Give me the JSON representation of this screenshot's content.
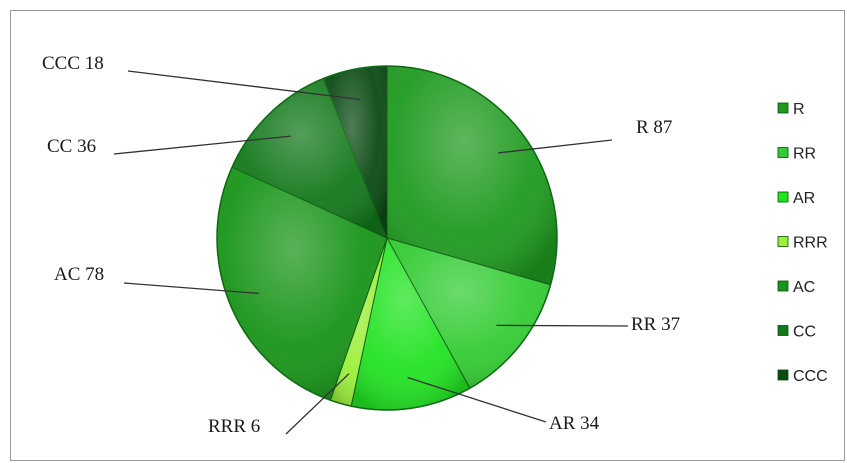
{
  "chart_data": {
    "type": "pie",
    "title": "",
    "categories": [
      "R",
      "RR",
      "AR",
      "RRR",
      "AC",
      "CC",
      "CCC"
    ],
    "values": [
      87,
      37,
      34,
      6,
      78,
      36,
      18
    ],
    "data_labels": [
      "R 87",
      "RR 37",
      "AR 34",
      "RRR 6",
      "AC 78",
      "CC 36",
      "CCC 18"
    ],
    "colors": [
      "#1f9a1f",
      "#33cc33",
      "#22e322",
      "#9cf03c",
      "#189418",
      "#12781a",
      "#0a4a14"
    ],
    "legend": {
      "placement": "right",
      "entries": [
        "R",
        "RR",
        "AR",
        "RRR",
        "AC",
        "CC",
        "CCC"
      ]
    },
    "start_angle_deg": 0,
    "direction": "clockwise",
    "style": "3d-pie"
  }
}
